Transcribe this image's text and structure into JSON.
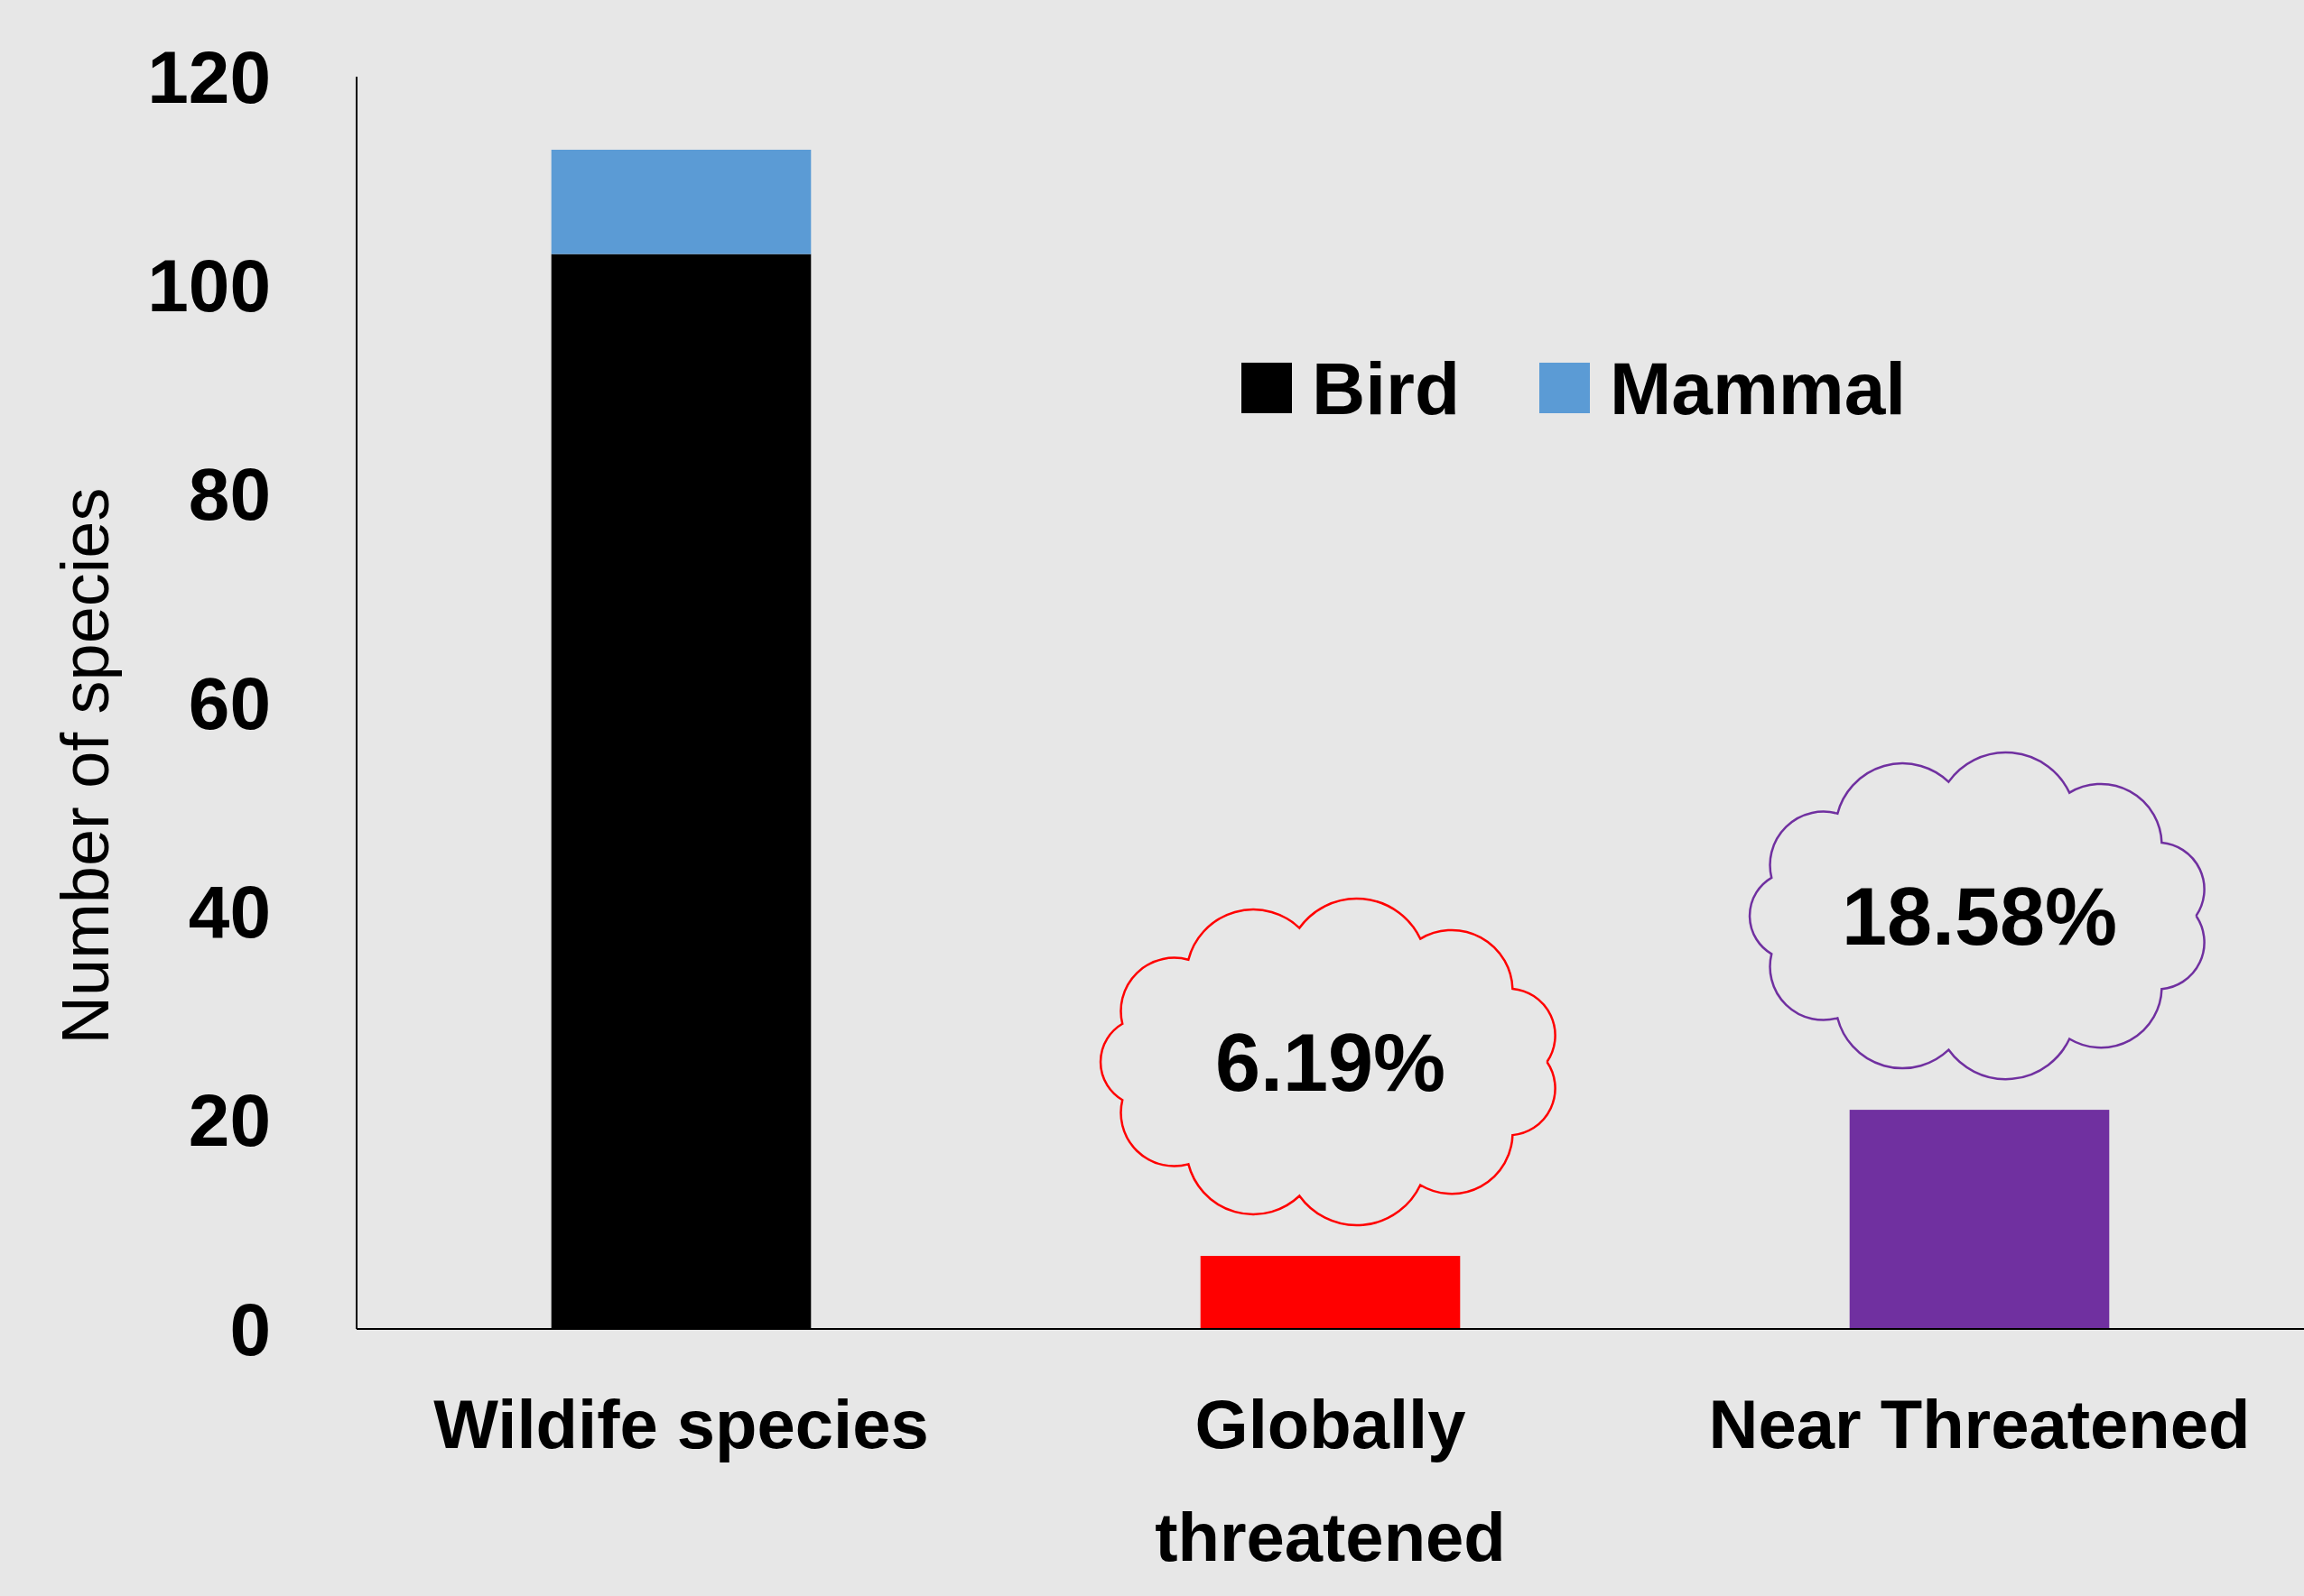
{
  "chart_data": {
    "type": "bar",
    "ylabel": "Number of species",
    "categories": [
      "Wildife species",
      "Globally threatened",
      "Near Threatened"
    ],
    "series": [
      {
        "name": "Bird",
        "color": "#000000",
        "values": [
          103,
          null,
          null
        ]
      },
      {
        "name": "Mammal",
        "color": "#5b9bd5",
        "values": [
          10,
          null,
          null
        ]
      },
      {
        "colors": [
          null,
          "#ff0000",
          "#7030a0"
        ],
        "values": [
          null,
          7,
          21
        ]
      }
    ],
    "stacked": true,
    "ylim": [
      0,
      120
    ],
    "yticks": [
      0,
      20,
      40,
      60,
      80,
      100,
      120
    ],
    "grid": false,
    "legend": "top right",
    "annotations": [
      "6.19%",
      "18.58%"
    ]
  }
}
